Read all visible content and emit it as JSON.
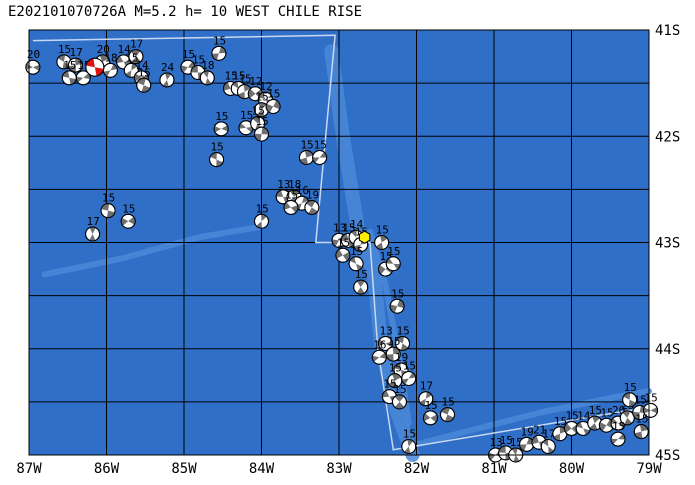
{
  "title": "E202101070726A  M=5.2  h=  10 WEST CHILE RISE",
  "map": {
    "lon_range": [
      -87,
      -79
    ],
    "lat_range": [
      -45,
      -41
    ],
    "ocean_color": "#2f6fc8",
    "ridge_color": "#4a8ad8",
    "grid_color": "#000000",
    "box_color": "#c8d8f0",
    "x_tick_labels": [
      "87W",
      "86W",
      "85W",
      "84W",
      "83W",
      "82W",
      "81W",
      "80W",
      "79W"
    ],
    "y_tick_labels": [
      "41S",
      "42S",
      "43S",
      "44S",
      "45S"
    ],
    "target_event": {
      "lon": -86.15,
      "lat": -41.35,
      "color": "#e01010"
    },
    "station_marker": {
      "lon": -82.67,
      "lat": -42.95,
      "color": "#ffee00"
    },
    "mechanisms": [
      {
        "lon": -86.95,
        "lat": -41.35,
        "label": "20"
      },
      {
        "lon": -86.55,
        "lat": -41.3,
        "label": "15"
      },
      {
        "lon": -86.4,
        "lat": -41.33,
        "label": "17"
      },
      {
        "lon": -86.3,
        "lat": -41.45,
        "label": "15"
      },
      {
        "lon": -86.48,
        "lat": -41.45,
        "label": "15"
      },
      {
        "lon": -86.05,
        "lat": -41.3,
        "label": "20"
      },
      {
        "lon": -85.95,
        "lat": -41.38,
        "label": "18"
      },
      {
        "lon": -85.78,
        "lat": -41.3,
        "label": "14"
      },
      {
        "lon": -85.62,
        "lat": -41.25,
        "label": "17"
      },
      {
        "lon": -85.68,
        "lat": -41.38,
        "label": "15"
      },
      {
        "lon": -85.55,
        "lat": -41.45,
        "label": "14"
      },
      {
        "lon": -85.52,
        "lat": -41.52,
        "label": "15"
      },
      {
        "lon": -85.22,
        "lat": -41.47,
        "label": "24"
      },
      {
        "lon": -84.95,
        "lat": -41.35,
        "label": "15"
      },
      {
        "lon": -84.82,
        "lat": -41.4,
        "label": "15"
      },
      {
        "lon": -84.7,
        "lat": -41.45,
        "label": "18"
      },
      {
        "lon": -84.55,
        "lat": -41.22,
        "label": "15"
      },
      {
        "lon": -84.4,
        "lat": -41.55,
        "label": "15"
      },
      {
        "lon": -84.3,
        "lat": -41.55,
        "label": "15"
      },
      {
        "lon": -84.22,
        "lat": -41.58,
        "label": "15"
      },
      {
        "lon": -84.08,
        "lat": -41.6,
        "label": "12"
      },
      {
        "lon": -83.95,
        "lat": -41.65,
        "label": "12"
      },
      {
        "lon": -84.0,
        "lat": -41.75,
        "label": "15"
      },
      {
        "lon": -83.85,
        "lat": -41.72,
        "label": "15"
      },
      {
        "lon": -84.2,
        "lat": -41.92,
        "label": "15"
      },
      {
        "lon": -84.05,
        "lat": -41.88,
        "label": "15"
      },
      {
        "lon": -84.0,
        "lat": -41.98,
        "label": "15"
      },
      {
        "lon": -84.52,
        "lat": -41.93,
        "label": "15"
      },
      {
        "lon": -84.58,
        "lat": -42.22,
        "label": "15"
      },
      {
        "lon": -83.42,
        "lat": -42.2,
        "label": "15"
      },
      {
        "lon": -83.25,
        "lat": -42.2,
        "label": "15"
      },
      {
        "lon": -83.72,
        "lat": -42.57,
        "label": "13"
      },
      {
        "lon": -83.58,
        "lat": -42.57,
        "label": "18"
      },
      {
        "lon": -83.48,
        "lat": -42.63,
        "label": "16"
      },
      {
        "lon": -83.62,
        "lat": -42.67,
        "label": "15"
      },
      {
        "lon": -83.35,
        "lat": -42.67,
        "label": "19"
      },
      {
        "lon": -84.0,
        "lat": -42.8,
        "label": "15"
      },
      {
        "lon": -85.72,
        "lat": -42.8,
        "label": "15"
      },
      {
        "lon": -85.98,
        "lat": -42.7,
        "label": "15"
      },
      {
        "lon": -86.18,
        "lat": -42.92,
        "label": "17"
      },
      {
        "lon": -83.0,
        "lat": -42.98,
        "label": "13"
      },
      {
        "lon": -82.88,
        "lat": -42.98,
        "label": "15"
      },
      {
        "lon": -82.78,
        "lat": -42.95,
        "label": "14"
      },
      {
        "lon": -82.72,
        "lat": -43.02,
        "label": "15"
      },
      {
        "lon": -82.95,
        "lat": -43.12,
        "label": "15"
      },
      {
        "lon": -82.78,
        "lat": -43.2,
        "label": "15"
      },
      {
        "lon": -82.45,
        "lat": -43.0,
        "label": "15"
      },
      {
        "lon": -82.4,
        "lat": -43.25,
        "label": "15"
      },
      {
        "lon": -82.3,
        "lat": -43.2,
        "label": "15"
      },
      {
        "lon": -82.72,
        "lat": -43.42,
        "label": "15"
      },
      {
        "lon": -82.25,
        "lat": -43.6,
        "label": "15"
      },
      {
        "lon": -82.4,
        "lat": -43.95,
        "label": "13"
      },
      {
        "lon": -82.18,
        "lat": -43.95,
        "label": "15"
      },
      {
        "lon": -82.3,
        "lat": -44.05,
        "label": "15"
      },
      {
        "lon": -82.48,
        "lat": -44.08,
        "label": "16"
      },
      {
        "lon": -82.2,
        "lat": -44.2,
        "label": "19"
      },
      {
        "lon": -82.28,
        "lat": -44.3,
        "label": "15"
      },
      {
        "lon": -82.1,
        "lat": -44.28,
        "label": "15"
      },
      {
        "lon": -82.35,
        "lat": -44.45,
        "label": "15"
      },
      {
        "lon": -82.22,
        "lat": -44.5,
        "label": "15"
      },
      {
        "lon": -81.88,
        "lat": -44.47,
        "label": "17"
      },
      {
        "lon": -81.82,
        "lat": -44.65,
        "label": "15"
      },
      {
        "lon": -81.6,
        "lat": -44.62,
        "label": "15"
      },
      {
        "lon": -82.1,
        "lat": -44.92,
        "label": "15"
      },
      {
        "lon": -80.98,
        "lat": -45.0,
        "label": "13"
      },
      {
        "lon": -80.85,
        "lat": -44.98,
        "label": "15"
      },
      {
        "lon": -80.72,
        "lat": -45.0,
        "label": "15"
      },
      {
        "lon": -80.58,
        "lat": -44.9,
        "label": "19"
      },
      {
        "lon": -80.42,
        "lat": -44.88,
        "label": "21"
      },
      {
        "lon": -80.3,
        "lat": -44.92,
        "label": "17"
      },
      {
        "lon": -80.15,
        "lat": -44.8,
        "label": "15"
      },
      {
        "lon": -80.0,
        "lat": -44.75,
        "label": "15"
      },
      {
        "lon": -79.85,
        "lat": -44.75,
        "label": "14"
      },
      {
        "lon": -79.7,
        "lat": -44.7,
        "label": "15"
      },
      {
        "lon": -79.55,
        "lat": -44.72,
        "label": "15"
      },
      {
        "lon": -79.4,
        "lat": -44.7,
        "label": "20"
      },
      {
        "lon": -79.28,
        "lat": -44.65,
        "label": "25"
      },
      {
        "lon": -79.12,
        "lat": -44.6,
        "label": "15"
      },
      {
        "lon": -78.98,
        "lat": -44.58,
        "label": "15"
      },
      {
        "lon": -79.25,
        "lat": -44.48,
        "label": "15"
      },
      {
        "lon": -79.1,
        "lat": -44.78,
        "label": "15"
      },
      {
        "lon": -79.4,
        "lat": -44.85,
        "label": "15"
      }
    ]
  }
}
